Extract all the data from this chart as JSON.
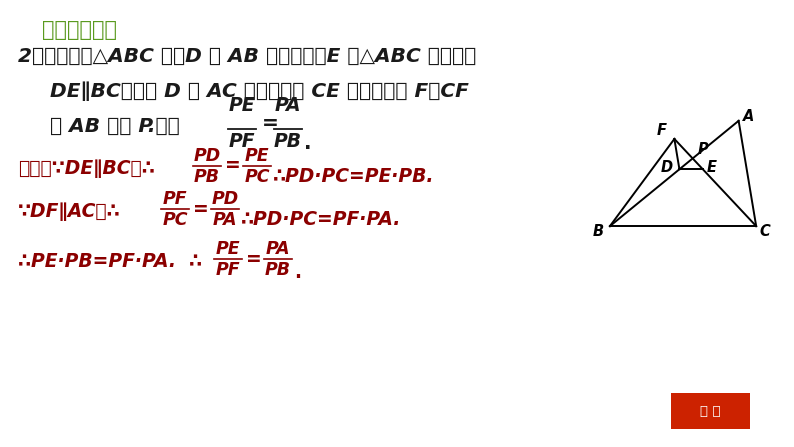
{
  "background_color": "#FFFFFF",
  "title": "期末提分练案",
  "title_color": "#5a9a1f",
  "proof_color": "#8B0000",
  "black": "#1a1a1a",
  "fig_width": 7.94,
  "fig_height": 4.47,
  "dpi": 100,
  "line1": "2．如图，在△ABC 中，D 是 AB 上的一点，E 是△ABC 内一点，",
  "line2": "DE∥BC，过点 D 作 AC 的平行线交 CE 的延长线于 F，CF",
  "line3_pre": "与 AB 交于 P.求证",
  "proof_line1_pre": "证明：∵DE∥BC，∴",
  "proof_line1_post": "∴PD·PC=PE·PB.",
  "proof_line2_pre": "∵DF∥AC，∴",
  "proof_line2_post": "∴PD·PC=PF·PA.",
  "proof_line3_pre": "∴PE·PB=PF·PA.  ∴",
  "btn_text": "返 回",
  "btn_facecolor": "#cc2200",
  "btn_edgecolor": "#f0a030"
}
